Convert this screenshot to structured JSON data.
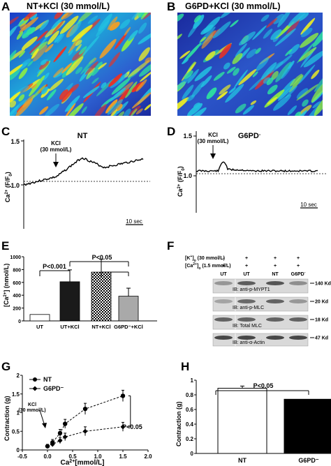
{
  "panels": {
    "A": {
      "label": "A",
      "title": "NT+KCl  (30 mmol/L)"
    },
    "B": {
      "label": "B",
      "title": "G6PD+KCl  (30 mmol/L)"
    },
    "C": {
      "label": "C",
      "title": "NT",
      "ylabel": "Ca",
      "ylabel_sup": "2+",
      "ylabel_rest": " (F/F",
      "ylabel_sub": "0",
      "ylabel_end": ")",
      "annotation_line1": "KCl",
      "annotation_line2": "(30 mmol/L)",
      "scalebar": "10 sec",
      "yticks": [
        "1.0",
        "1.5"
      ]
    },
    "D": {
      "label": "D",
      "title": "G6PD",
      "title_sup": "-",
      "ylabel": "Ca",
      "ylabel_sup": "2+",
      "ylabel_rest": " (F/F",
      "ylabel_sub": "0",
      "ylabel_end": ")",
      "annotation_line1": "KCl",
      "annotation_line2": "(30 mmol/L)",
      "scalebar": "10 sec",
      "yticks": [
        "1.0",
        "1.5"
      ]
    },
    "E": {
      "label": "E",
      "ylabel": "[Ca",
      "ylabel_sup": "2+",
      "ylabel_rest": "] (nmol/L)",
      "sig1": "P<0.001",
      "sig2": "P<0.05",
      "yticks": [
        "0",
        "200",
        "400",
        "600",
        "800",
        "1000"
      ]
    },
    "F": {
      "label": "F",
      "row1_label": "[K",
      "row1_sup": "+",
      "row1_rest": "]",
      "row1_sub": "o",
      "row1_end": " (30 mmol/L)",
      "row2_label": "[Ca",
      "row2_sup": "2+",
      "row2_rest": "]",
      "row2_sub": "o",
      "row2_end": " (1.5 mmol/L)",
      "row1_signs": [
        "-",
        "+",
        "+",
        "+"
      ],
      "row2_signs": [
        "+",
        "+",
        "+",
        "+"
      ],
      "lanes": [
        "UT",
        "UT",
        "NT",
        "G6PD"
      ],
      "lane4_sup": "-",
      "blots": [
        {
          "ib": "IB: anti-p-MYPT1",
          "kd": "140 Kd"
        },
        {
          "ib": "IB: anti-p-MLC",
          "kd": "20 Kd"
        },
        {
          "ib": "IB: Total MLC",
          "kd": "18 Kd"
        },
        {
          "ib": "IB: anti-α-Actin",
          "kd": "47 Kd"
        }
      ]
    },
    "G": {
      "label": "G",
      "xlabel": "Ca",
      "xlabel_sup": "2+",
      "xlabel_rest": "[mmol/L]",
      "ylabel": "Contraction (g)",
      "annotation_line1": "KCl",
      "annotation_line2": "(30 mmol/L)",
      "sig": "P<0.05",
      "yticks": [
        "0",
        "0.5",
        "1",
        "1.5",
        "2"
      ],
      "xticks": [
        "-0.5",
        "0.0",
        "0.5",
        "1.0",
        "1.5",
        "2.0"
      ]
    },
    "H": {
      "label": "H",
      "ylabel": "Contraction (g)",
      "sig": "P<0.05",
      "yticks": [
        "0",
        "0.2",
        "0.4",
        "0.6",
        "0.8",
        "1"
      ]
    }
  },
  "chart_data": [
    {
      "panel": "E",
      "type": "bar",
      "categories": [
        "UT",
        "UT+KCl",
        "NT+KCl",
        "G6PD⁻+KCl"
      ],
      "values": [
        100,
        610,
        760,
        385
      ],
      "errors": [
        0,
        185,
        200,
        125
      ],
      "ylabel": "[Ca2+] (nmol/L)",
      "ylim": [
        0,
        1000
      ]
    },
    {
      "panel": "G",
      "type": "line",
      "series": [
        {
          "name": "NT",
          "x": [
            0.0,
            0.1,
            0.25,
            0.35,
            0.75,
            1.5
          ],
          "y": [
            0.1,
            0.2,
            0.45,
            0.7,
            1.1,
            1.45
          ]
        },
        {
          "name": "G6PD⁻",
          "x": [
            0.0,
            0.1,
            0.25,
            0.35,
            0.75,
            1.5
          ],
          "y": [
            0.1,
            0.15,
            0.25,
            0.35,
            0.5,
            0.62
          ]
        }
      ],
      "errors_nt": [
        0.05,
        0.08,
        0.1,
        0.12,
        0.15,
        0.15
      ],
      "errors_g6pd": [
        0.04,
        0.06,
        0.08,
        0.1,
        0.12,
        0.12
      ],
      "xlim": [
        -0.5,
        2.0
      ],
      "ylim": [
        0,
        2
      ]
    },
    {
      "panel": "H",
      "type": "bar",
      "categories": [
        "NT",
        "G6PD⁻"
      ],
      "values": [
        0.89,
        0.74
      ],
      "errors": [
        0.03,
        0
      ],
      "ylim": [
        0,
        1
      ]
    },
    {
      "panel": "C",
      "type": "line",
      "note": "Ca2+ transient trace, NT",
      "trace_range": [
        1.0,
        1.37
      ]
    },
    {
      "panel": "D",
      "type": "line",
      "note": "Ca2+ transient trace, G6PD-",
      "trace_range": [
        1.03,
        1.2
      ]
    }
  ],
  "colors": {
    "bar_ut": "#ffffff",
    "bar_utkcl": "#1a1a1a",
    "bar_ntkcl": "checker",
    "bar_g6pd": "#a9a9a9",
    "heatmap_low": "#1a2a9e",
    "heatmap_high": "#ff2020"
  }
}
